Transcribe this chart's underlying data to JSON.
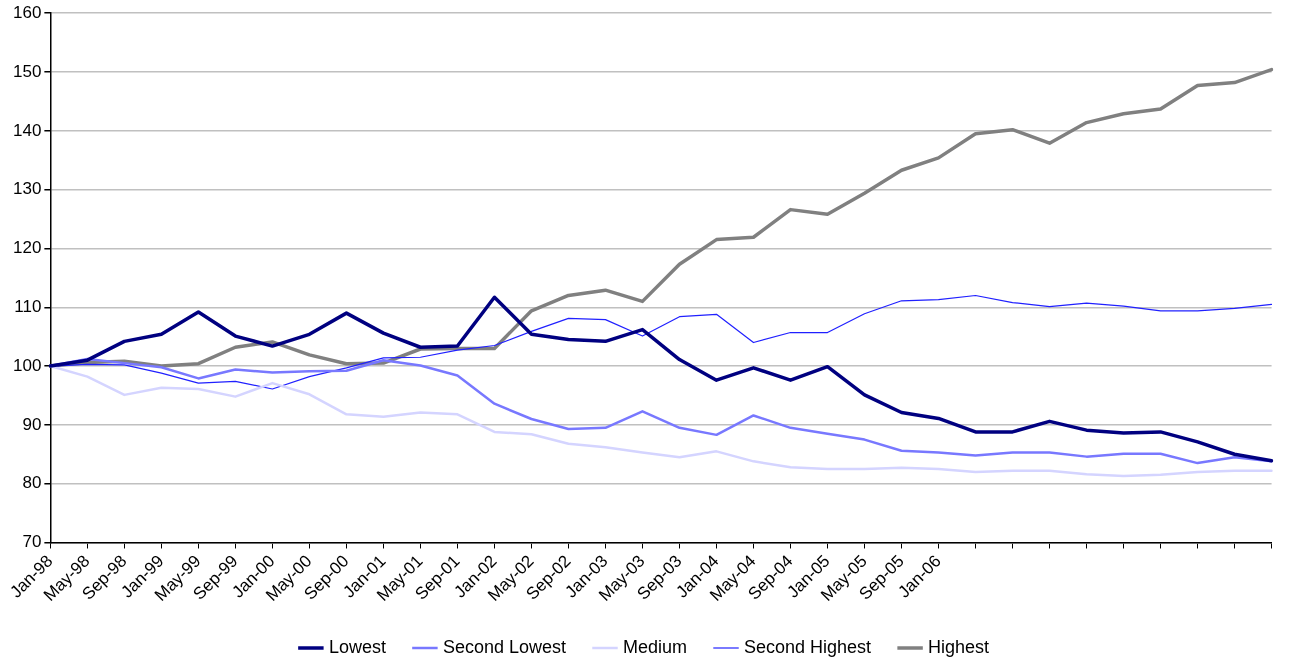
{
  "chart_data": {
    "type": "line",
    "categories": [
      "Jan-98",
      "May-98",
      "Sep-98",
      "Jan-99",
      "May-99",
      "Sep-99",
      "Jan-00",
      "May-00",
      "Sep-00",
      "Jan-01",
      "May-01",
      "Sep-01",
      "Jan-02",
      "May-02",
      "Sep-02",
      "Jan-03",
      "May-03",
      "Sep-03",
      "Jan-04",
      "May-04",
      "Sep-04",
      "Jan-05",
      "May-05",
      "Sep-05",
      "Jan-06",
      null,
      null,
      null,
      null,
      null,
      null,
      null,
      null,
      null
    ],
    "ylim": [
      70,
      160
    ],
    "yticks": [
      70,
      80,
      90,
      100,
      110,
      120,
      130,
      140,
      150,
      160
    ],
    "grid": "y",
    "legend": "bottom",
    "marker": "none",
    "line_style": "solid",
    "series": [
      {
        "name": "Lowest",
        "color": "#000080",
        "values": [
          100,
          101,
          104.2,
          105.4,
          109.2,
          105.1,
          103.4,
          105.4,
          109,
          105.6,
          103.2,
          103.4,
          111.7,
          105.4,
          104.5,
          104.2,
          106.2,
          101.1,
          97.6,
          99.7,
          97.6,
          99.9,
          95.1,
          92.1,
          91.1,
          88.8,
          88.8,
          90.6,
          89.1,
          88.6,
          88.8,
          87.1,
          85,
          83.9
        ]
      },
      {
        "name": "Second Lowest",
        "color": "#7878ff",
        "values": [
          100,
          101.2,
          100.5,
          99.8,
          97.9,
          99.4,
          98.9,
          99.1,
          99.2,
          101,
          100.1,
          98.4,
          93.6,
          91,
          89.3,
          89.5,
          92.3,
          89.5,
          88.3,
          91.6,
          89.5,
          88.5,
          87.5,
          85.6,
          85.3,
          84.8,
          85.3,
          85.3,
          84.6,
          85.1,
          85.1,
          83.5,
          84.5,
          83.8
        ]
      },
      {
        "name": "Medium",
        "color": "#d4d4ff",
        "values": [
          100,
          98.2,
          95.1,
          96.3,
          96.1,
          94.8,
          97.1,
          95.2,
          91.8,
          91.4,
          92.1,
          91.8,
          88.8,
          88.4,
          86.8,
          86.2,
          85.3,
          84.5,
          85.5,
          83.8,
          82.8,
          82.5,
          82.5,
          82.7,
          82.5,
          82,
          82.2,
          82.2,
          81.6,
          81.3,
          81.5,
          82,
          82.2,
          82.2
        ]
      },
      {
        "name": "Second Highest",
        "color": "#2020ff",
        "values": [
          100,
          100.3,
          100.2,
          98.8,
          97.1,
          97.4,
          96.1,
          98.2,
          99.7,
          101.4,
          101.5,
          102.7,
          103.5,
          105.9,
          108.1,
          107.9,
          105.1,
          108.4,
          108.8,
          104,
          105.7,
          105.7,
          108.9,
          111.1,
          111.3,
          112,
          110.8,
          110.1,
          110.7,
          110.2,
          109.4,
          109.4,
          109.8,
          110.5
        ]
      },
      {
        "name": "Highest",
        "color": "#808080",
        "values": [
          100,
          100.6,
          100.8,
          100,
          100.4,
          103.2,
          104.1,
          101.9,
          100.4,
          100.5,
          102.9,
          103,
          103,
          109.4,
          112,
          112.9,
          111,
          117.3,
          121.5,
          121.9,
          126.6,
          125.8,
          129.4,
          133.3,
          135.4,
          139.5,
          140.2,
          137.9,
          141.4,
          142.9,
          143.7,
          147.7,
          148.2,
          150.4
        ]
      }
    ]
  }
}
